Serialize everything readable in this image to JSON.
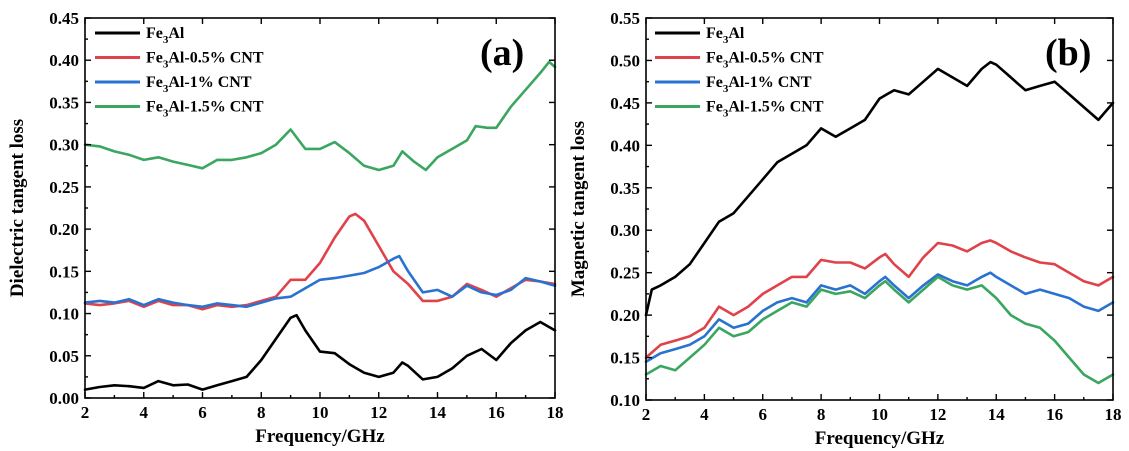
{
  "chart_data": [
    {
      "panel": "a",
      "type": "line",
      "panel_label": "(a)",
      "title": "",
      "xlabel": "Frequency/GHz",
      "ylabel": "Dielectric tangent loss",
      "xlim": [
        2,
        18
      ],
      "ylim": [
        0,
        0.45
      ],
      "xticks": [
        2,
        4,
        6,
        8,
        10,
        12,
        14,
        16,
        18
      ],
      "xtick_labels": [
        "2",
        "4",
        "6",
        "8",
        "10",
        "12",
        "14",
        "16",
        "18"
      ],
      "yticks": [
        0,
        0.05,
        0.1,
        0.15,
        0.2,
        0.25,
        0.3,
        0.35,
        0.4,
        0.45
      ],
      "ytick_labels": [
        "0.00",
        "0.05",
        "0.10",
        "0.15",
        "0.20",
        "0.25",
        "0.30",
        "0.35",
        "0.40",
        "0.45"
      ],
      "legend_position": "top-left",
      "grid": false,
      "series": [
        {
          "name": "Fe3Al",
          "name_base": "Fe",
          "name_sub": "3",
          "name_rest": "Al",
          "color": "#000000",
          "x": [
            2,
            2.5,
            3,
            3.5,
            4,
            4.5,
            5,
            5.5,
            6,
            6.5,
            7,
            7.5,
            8,
            8.5,
            9,
            9.2,
            9.5,
            10,
            10.5,
            11,
            11.5,
            12,
            12.5,
            12.8,
            13,
            13.5,
            14,
            14.5,
            15,
            15.5,
            16,
            16.5,
            17,
            17.5,
            18
          ],
          "y": [
            0.01,
            0.013,
            0.015,
            0.014,
            0.012,
            0.02,
            0.015,
            0.016,
            0.01,
            0.015,
            0.02,
            0.025,
            0.045,
            0.07,
            0.095,
            0.098,
            0.08,
            0.055,
            0.053,
            0.04,
            0.03,
            0.025,
            0.03,
            0.042,
            0.038,
            0.022,
            0.025,
            0.035,
            0.05,
            0.058,
            0.045,
            0.065,
            0.08,
            0.09,
            0.08
          ]
        },
        {
          "name": "Fe3Al-0.5% CNT",
          "name_base": "Fe",
          "name_sub": "3",
          "name_rest": "Al-0.5% CNT",
          "color": "#e0424a",
          "x": [
            2,
            2.5,
            3,
            3.5,
            4,
            4.5,
            5,
            5.5,
            6,
            6.5,
            7,
            7.5,
            8,
            8.5,
            9,
            9.5,
            10,
            10.5,
            11,
            11.2,
            11.5,
            12,
            12.5,
            13,
            13.5,
            14,
            14.5,
            15,
            15.5,
            16,
            16.5,
            17,
            17.5,
            18
          ],
          "y": [
            0.112,
            0.11,
            0.112,
            0.115,
            0.108,
            0.115,
            0.11,
            0.11,
            0.105,
            0.11,
            0.108,
            0.11,
            0.115,
            0.12,
            0.14,
            0.14,
            0.16,
            0.19,
            0.215,
            0.218,
            0.21,
            0.18,
            0.15,
            0.135,
            0.115,
            0.115,
            0.12,
            0.135,
            0.128,
            0.12,
            0.13,
            0.14,
            0.138,
            0.135
          ]
        },
        {
          "name": "Fe3Al-1% CNT",
          "name_base": "Fe",
          "name_sub": "3",
          "name_rest": "Al-1%  CNT",
          "color": "#2a72cf",
          "x": [
            2,
            2.5,
            3,
            3.5,
            4,
            4.5,
            5,
            5.5,
            6,
            6.5,
            7,
            7.5,
            8,
            8.5,
            9,
            9.5,
            10,
            10.5,
            11,
            11.5,
            12,
            12.5,
            12.7,
            13,
            13.5,
            14,
            14.5,
            15,
            15.5,
            16,
            16.5,
            17,
            17.5,
            18
          ],
          "y": [
            0.113,
            0.115,
            0.113,
            0.117,
            0.11,
            0.117,
            0.113,
            0.11,
            0.108,
            0.112,
            0.11,
            0.108,
            0.113,
            0.118,
            0.12,
            0.13,
            0.14,
            0.142,
            0.145,
            0.148,
            0.155,
            0.165,
            0.168,
            0.15,
            0.125,
            0.128,
            0.12,
            0.133,
            0.125,
            0.122,
            0.128,
            0.142,
            0.138,
            0.133
          ]
        },
        {
          "name": "Fe3Al-1.5% CNT",
          "name_base": "Fe",
          "name_sub": "3",
          "name_rest": "Al-1.5% CNT",
          "color": "#3aa660",
          "x": [
            2,
            2.5,
            3,
            3.5,
            4,
            4.5,
            5,
            5.5,
            6,
            6.5,
            7,
            7.5,
            8,
            8.5,
            9,
            9.5,
            10,
            10.5,
            11,
            11.5,
            12,
            12.5,
            12.8,
            13.2,
            13.6,
            14,
            14.5,
            15,
            15.3,
            15.7,
            16,
            16.5,
            17,
            17.5,
            17.8,
            18
          ],
          "y": [
            0.3,
            0.298,
            0.292,
            0.288,
            0.282,
            0.285,
            0.28,
            0.276,
            0.272,
            0.282,
            0.282,
            0.285,
            0.29,
            0.3,
            0.318,
            0.295,
            0.295,
            0.303,
            0.29,
            0.275,
            0.27,
            0.275,
            0.292,
            0.28,
            0.27,
            0.285,
            0.295,
            0.305,
            0.322,
            0.32,
            0.32,
            0.345,
            0.365,
            0.385,
            0.398,
            0.392
          ]
        }
      ]
    },
    {
      "panel": "b",
      "type": "line",
      "panel_label": "(b)",
      "title": "",
      "xlabel": "Frequency/GHz",
      "ylabel": "Magnetic tangent loss",
      "xlim": [
        2,
        18
      ],
      "ylim": [
        0.1,
        0.55
      ],
      "xticks": [
        2,
        4,
        6,
        8,
        10,
        12,
        14,
        16,
        18
      ],
      "xtick_labels": [
        "2",
        "4",
        "6",
        "8",
        "10",
        "12",
        "14",
        "16",
        "18"
      ],
      "yticks": [
        0.1,
        0.15,
        0.2,
        0.25,
        0.3,
        0.35,
        0.4,
        0.45,
        0.5,
        0.55
      ],
      "ytick_labels": [
        "0.10",
        "0.15",
        "0.20",
        "0.25",
        "0.30",
        "0.35",
        "0.40",
        "0.45",
        "0.50",
        "0.55"
      ],
      "legend_position": "top-left",
      "grid": false,
      "series": [
        {
          "name": "Fe3Al",
          "name_base": "Fe",
          "name_sub": "3",
          "name_rest": "Al",
          "color": "#000000",
          "x": [
            2,
            2.2,
            2.5,
            3,
            3.5,
            4,
            4.5,
            5,
            5.5,
            6,
            6.5,
            7,
            7.5,
            8,
            8.5,
            9,
            9.5,
            10,
            10.5,
            11,
            11.5,
            12,
            12.5,
            13,
            13.5,
            13.8,
            14,
            14.5,
            15,
            15.5,
            16,
            16.5,
            17,
            17.5,
            18
          ],
          "y": [
            0.2,
            0.23,
            0.235,
            0.245,
            0.26,
            0.285,
            0.31,
            0.32,
            0.34,
            0.36,
            0.38,
            0.39,
            0.4,
            0.42,
            0.41,
            0.42,
            0.43,
            0.455,
            0.465,
            0.46,
            0.475,
            0.49,
            0.48,
            0.47,
            0.49,
            0.498,
            0.495,
            0.48,
            0.465,
            0.47,
            0.475,
            0.46,
            0.445,
            0.43,
            0.45
          ]
        },
        {
          "name": "Fe3Al-0.5% CNT",
          "name_base": "Fe",
          "name_sub": "3",
          "name_rest": "Al-0.5% CNT",
          "color": "#e0424a",
          "x": [
            2,
            2.5,
            3,
            3.5,
            4,
            4.5,
            5,
            5.5,
            6,
            6.5,
            7,
            7.5,
            8,
            8.5,
            9,
            9.5,
            10,
            10.2,
            10.5,
            11,
            11.5,
            12,
            12.5,
            13,
            13.5,
            13.8,
            14,
            14.5,
            15,
            15.5,
            16,
            16.5,
            17,
            17.5,
            18
          ],
          "y": [
            0.15,
            0.165,
            0.17,
            0.175,
            0.185,
            0.21,
            0.2,
            0.21,
            0.225,
            0.235,
            0.245,
            0.245,
            0.265,
            0.262,
            0.262,
            0.255,
            0.268,
            0.272,
            0.26,
            0.245,
            0.268,
            0.285,
            0.282,
            0.275,
            0.285,
            0.288,
            0.285,
            0.275,
            0.268,
            0.262,
            0.26,
            0.25,
            0.24,
            0.235,
            0.245
          ]
        },
        {
          "name": "Fe3Al-1% CNT",
          "name_base": "Fe",
          "name_sub": "3",
          "name_rest": "Al-1%  CNT",
          "color": "#2a72cf",
          "x": [
            2,
            2.5,
            3,
            3.5,
            4,
            4.5,
            5,
            5.5,
            6,
            6.5,
            7,
            7.5,
            8,
            8.5,
            9,
            9.5,
            10,
            10.2,
            10.5,
            11,
            11.5,
            12,
            12.5,
            13,
            13.5,
            13.8,
            14,
            14.5,
            15,
            15.5,
            16,
            16.5,
            17,
            17.5,
            18
          ],
          "y": [
            0.145,
            0.155,
            0.16,
            0.165,
            0.175,
            0.195,
            0.185,
            0.19,
            0.205,
            0.215,
            0.22,
            0.215,
            0.235,
            0.23,
            0.235,
            0.225,
            0.24,
            0.245,
            0.235,
            0.22,
            0.235,
            0.248,
            0.24,
            0.235,
            0.245,
            0.25,
            0.245,
            0.235,
            0.225,
            0.23,
            0.225,
            0.22,
            0.21,
            0.205,
            0.215
          ]
        },
        {
          "name": "Fe3Al-1.5% CNT",
          "name_base": "Fe",
          "name_sub": "3",
          "name_rest": "Al-1.5% CNT",
          "color": "#3aa660",
          "x": [
            2,
            2.5,
            3,
            3.5,
            4,
            4.5,
            5,
            5.5,
            6,
            6.5,
            7,
            7.5,
            8,
            8.5,
            9,
            9.5,
            10,
            10.2,
            10.5,
            11,
            11.5,
            12,
            12.5,
            13,
            13.5,
            14,
            14.5,
            15,
            15.5,
            16,
            16.5,
            17,
            17.5,
            18
          ],
          "y": [
            0.13,
            0.14,
            0.135,
            0.15,
            0.165,
            0.185,
            0.175,
            0.18,
            0.195,
            0.205,
            0.215,
            0.21,
            0.23,
            0.225,
            0.228,
            0.22,
            0.235,
            0.24,
            0.23,
            0.215,
            0.23,
            0.245,
            0.235,
            0.23,
            0.235,
            0.22,
            0.2,
            0.19,
            0.185,
            0.17,
            0.15,
            0.13,
            0.12,
            0.13
          ]
        }
      ]
    }
  ]
}
